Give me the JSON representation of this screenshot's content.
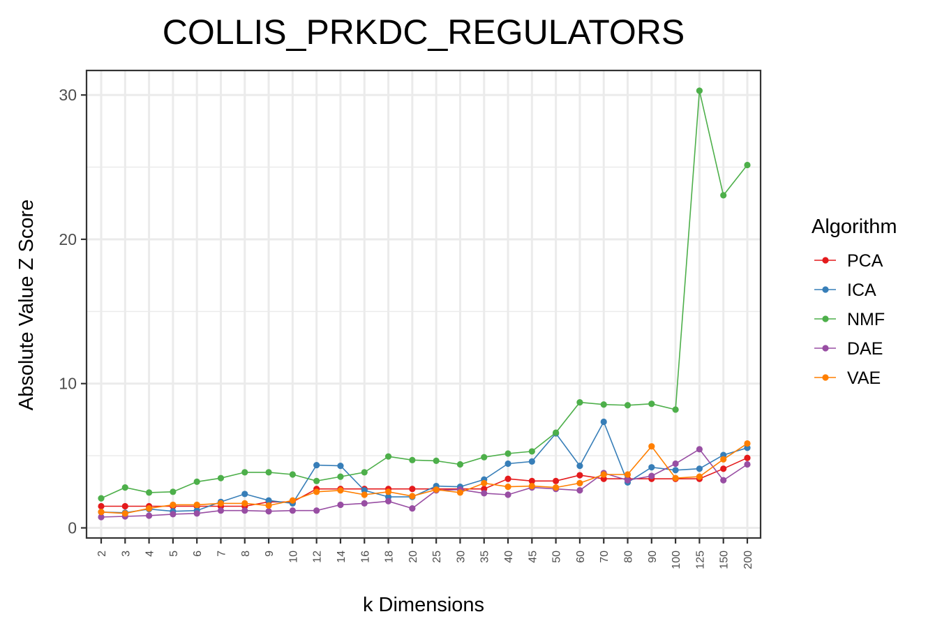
{
  "chart_data": {
    "type": "line",
    "title": "COLLIS_PRKDC_REGULATORS",
    "xlabel": "k Dimensions",
    "ylabel": "Absolute Value Z Score",
    "categories": [
      "2",
      "3",
      "4",
      "5",
      "6",
      "7",
      "8",
      "9",
      "10",
      "12",
      "14",
      "16",
      "18",
      "20",
      "25",
      "30",
      "35",
      "40",
      "45",
      "50",
      "60",
      "70",
      "80",
      "90",
      "100",
      "125",
      "150",
      "200"
    ],
    "y_ticks": [
      "0",
      "10",
      "20",
      "30"
    ],
    "ylim": [
      -0.7,
      31.7
    ],
    "grid": true,
    "legend": {
      "title": "Algorithm",
      "position": "right"
    },
    "series": [
      {
        "name": "PCA",
        "color": "#e41a1c",
        "values": [
          1.5,
          1.5,
          1.5,
          1.5,
          1.5,
          1.5,
          1.5,
          1.8,
          1.8,
          2.7,
          2.7,
          2.7,
          2.7,
          2.7,
          2.7,
          2.7,
          2.7,
          3.4,
          3.25,
          3.25,
          3.65,
          3.4,
          3.4,
          3.4,
          3.4,
          3.4,
          4.1,
          4.85
        ]
      },
      {
        "name": "ICA",
        "color": "#377eb8",
        "values": [
          1.1,
          1.05,
          1.3,
          1.15,
          1.2,
          1.8,
          2.35,
          1.9,
          1.7,
          4.35,
          4.3,
          2.6,
          2.15,
          2.15,
          2.9,
          2.85,
          3.35,
          4.45,
          4.6,
          6.55,
          4.3,
          7.35,
          3.15,
          4.2,
          4.0,
          4.1,
          5.05,
          5.55
        ]
      },
      {
        "name": "NMF",
        "color": "#4daf4a",
        "values": [
          2.05,
          2.8,
          2.45,
          2.5,
          3.2,
          3.45,
          3.85,
          3.85,
          3.7,
          3.25,
          3.55,
          3.85,
          4.95,
          4.7,
          4.65,
          4.4,
          4.9,
          5.15,
          5.3,
          6.6,
          8.7,
          8.55,
          8.5,
          8.6,
          8.2,
          30.3,
          23.05,
          25.15
        ]
      },
      {
        "name": "DAE",
        "color": "#984ea3",
        "values": [
          0.75,
          0.8,
          0.85,
          0.95,
          1.0,
          1.2,
          1.2,
          1.15,
          1.2,
          1.2,
          1.6,
          1.7,
          1.85,
          1.35,
          2.6,
          2.65,
          2.4,
          2.3,
          2.8,
          2.7,
          2.6,
          3.8,
          3.3,
          3.6,
          4.45,
          5.45,
          3.3,
          4.4
        ]
      },
      {
        "name": "VAE",
        "color": "#ff7f00",
        "values": [
          1.1,
          1.0,
          1.35,
          1.6,
          1.6,
          1.7,
          1.7,
          1.55,
          1.9,
          2.5,
          2.6,
          2.3,
          2.5,
          2.2,
          2.65,
          2.45,
          3.1,
          2.85,
          2.9,
          2.8,
          3.1,
          3.7,
          3.7,
          5.65,
          3.45,
          3.55,
          4.75,
          5.85
        ]
      }
    ]
  }
}
